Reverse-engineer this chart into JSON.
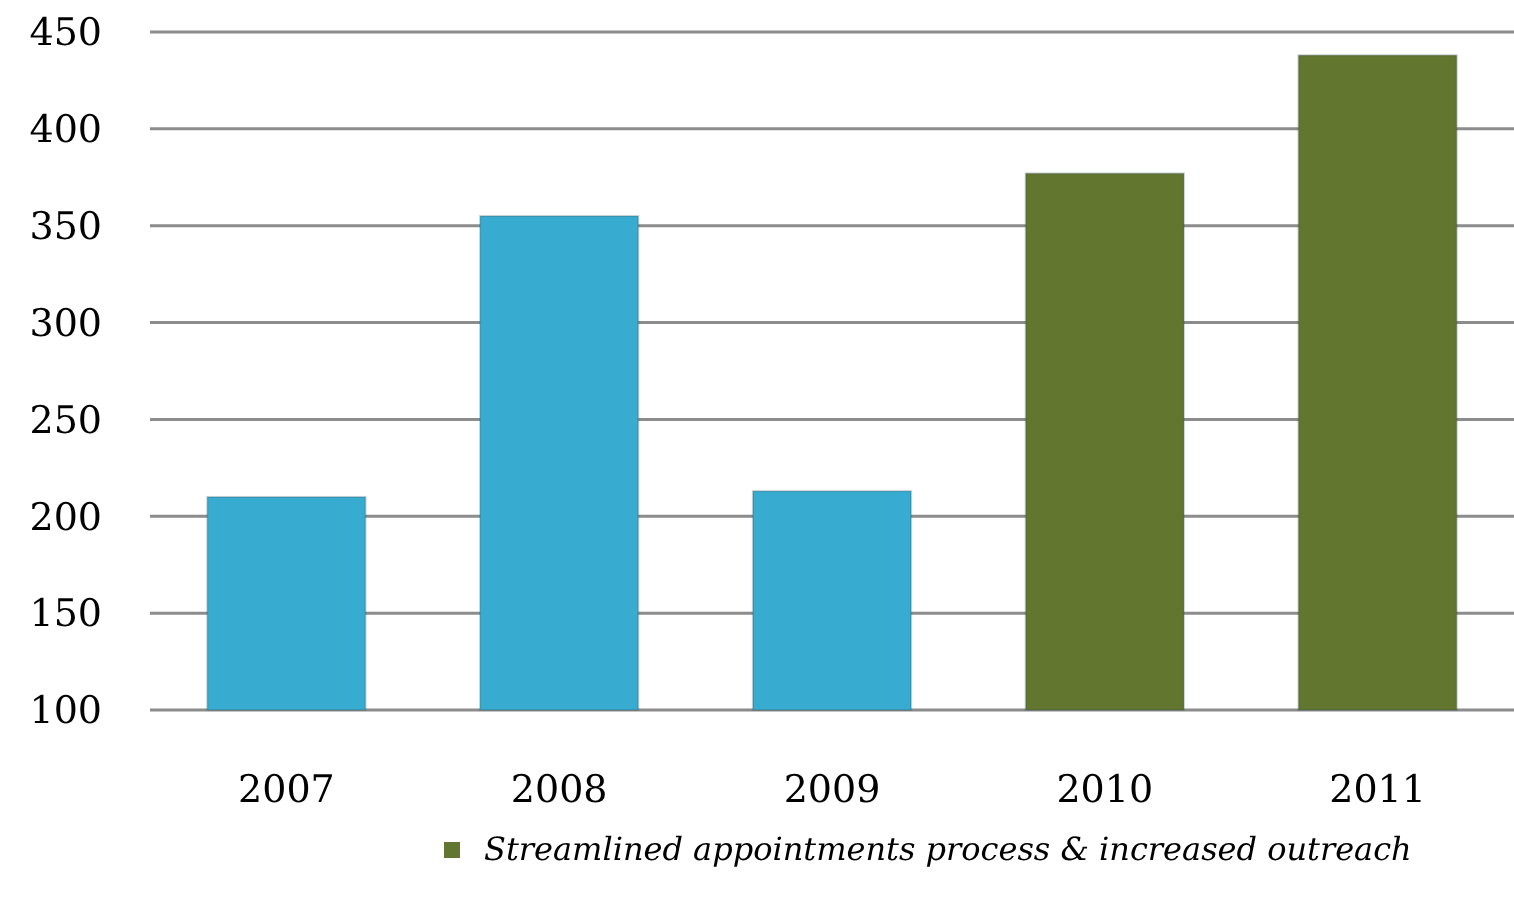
{
  "chart_data": {
    "type": "bar",
    "categories": [
      "2007",
      "2008",
      "2009",
      "2010",
      "2011"
    ],
    "series": [
      {
        "color": "#38acd0",
        "values": [
          210,
          355,
          213,
          null,
          null
        ]
      },
      {
        "name": "Streamlined appointments process & increased outreach",
        "color": "#62762f",
        "values": [
          null,
          null,
          null,
          377,
          438
        ]
      }
    ],
    "stacked": true,
    "ylim": [
      100,
      450
    ],
    "yticks": [
      100,
      150,
      200,
      250,
      300,
      350,
      400,
      450
    ],
    "grid": "y",
    "legend": "bottom"
  }
}
